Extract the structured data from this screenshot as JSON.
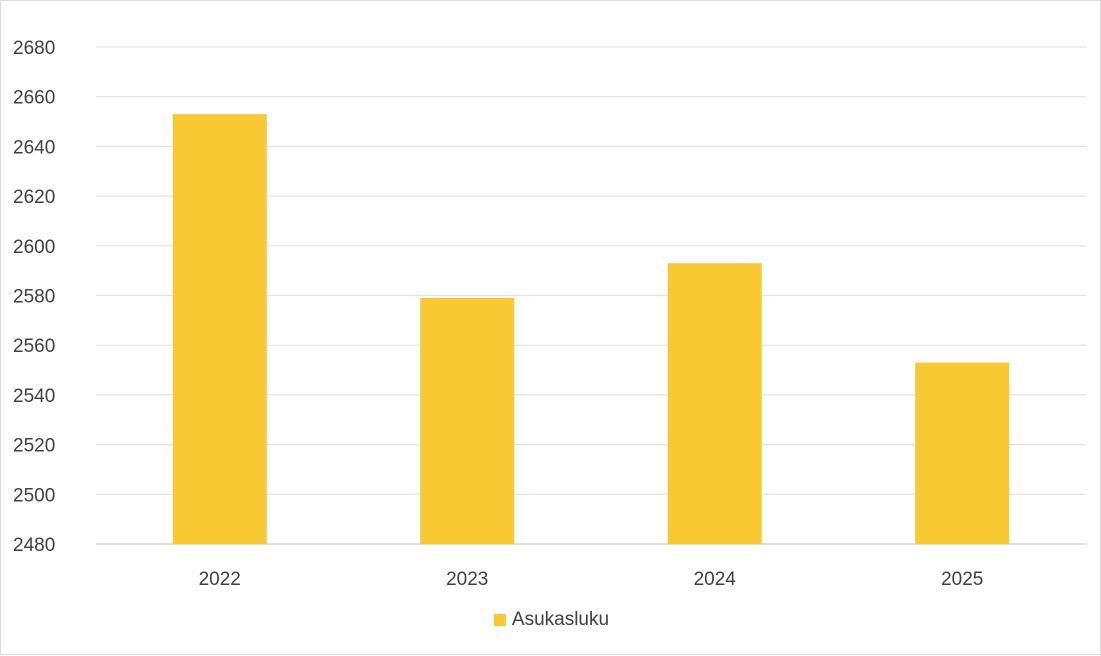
{
  "chart_data": {
    "type": "bar",
    "title": "",
    "xlabel": "",
    "ylabel": "",
    "categories": [
      "2022",
      "2023",
      "2024",
      "2025"
    ],
    "series": [
      {
        "name": "Asukasluku",
        "values": [
          2653,
          2579,
          2593,
          2553
        ],
        "color": "#f9c933"
      }
    ],
    "ylim": [
      2480,
      2680
    ],
    "yticks": [
      2480,
      2500,
      2520,
      2540,
      2560,
      2580,
      2600,
      2620,
      2640,
      2660,
      2680
    ],
    "grid": true,
    "legend_position": "bottom"
  }
}
